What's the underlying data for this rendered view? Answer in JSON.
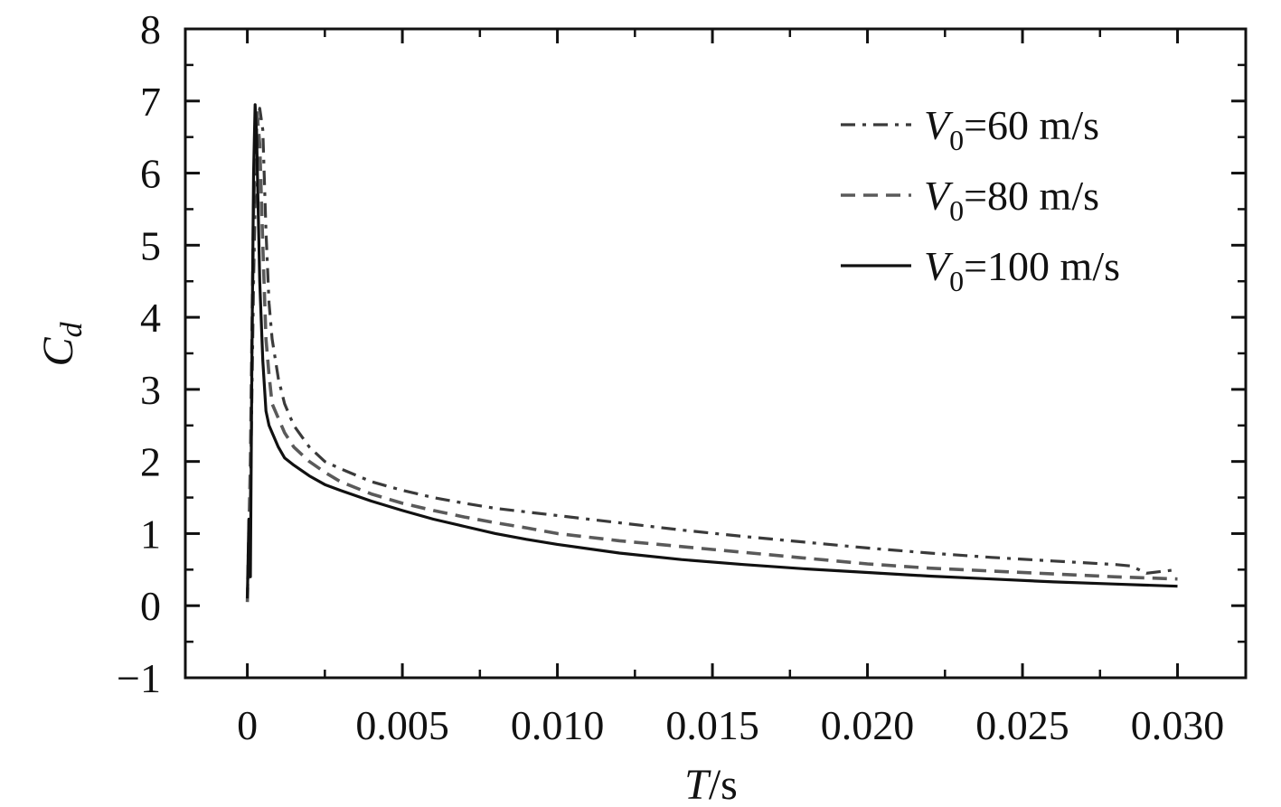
{
  "chart_data": {
    "type": "line",
    "xlabel": {
      "var": "T",
      "unit": "/s"
    },
    "ylabel": {
      "var": "C",
      "sub": "d"
    },
    "xlim": [
      -0.002,
      0.0322
    ],
    "ylim": [
      -1,
      8
    ],
    "xticks": [
      0,
      0.005,
      0.01,
      0.015,
      0.02,
      0.025,
      0.03
    ],
    "xtick_labels": [
      "0",
      "0.005",
      "0.010",
      "0.015",
      "0.020",
      "0.025",
      "0.030"
    ],
    "yticks": [
      -1,
      0,
      1,
      2,
      3,
      4,
      5,
      6,
      7,
      8
    ],
    "ytick_labels": [
      "−1",
      "0",
      "1",
      "2",
      "3",
      "4",
      "5",
      "6",
      "7",
      "8"
    ],
    "legend_position": "top-right",
    "grid": false,
    "series": [
      {
        "name": "V0=60 m/s",
        "legend_label": {
          "var": "V",
          "sub": "0",
          "rest": "=60 m/s"
        },
        "style": "dashdot",
        "color": "#3a3a3a",
        "x": [
          0,
          0.0001,
          0.0002,
          0.0003,
          0.0004,
          0.0005,
          0.0006,
          0.0007,
          0.0008,
          0.001,
          0.0012,
          0.0015,
          0.002,
          0.0025,
          0.003,
          0.004,
          0.005,
          0.006,
          0.007,
          0.008,
          0.009,
          0.01,
          0.012,
          0.014,
          0.016,
          0.018,
          0.02,
          0.022,
          0.024,
          0.026,
          0.028,
          0.0285,
          0.029,
          0.03
        ],
        "y": [
          0.1,
          1.5,
          4.5,
          6.6,
          6.9,
          6.6,
          5.2,
          4.2,
          3.7,
          3.15,
          2.8,
          2.5,
          2.2,
          2.0,
          1.9,
          1.72,
          1.6,
          1.5,
          1.42,
          1.35,
          1.3,
          1.25,
          1.15,
          1.05,
          0.96,
          0.88,
          0.8,
          0.73,
          0.67,
          0.62,
          0.57,
          0.55,
          0.45,
          0.5
        ]
      },
      {
        "name": "V0=80 m/s",
        "legend_label": {
          "var": "V",
          "sub": "0",
          "rest": "=80 m/s"
        },
        "style": "dashed",
        "color": "#5a5a5a",
        "x": [
          0,
          0.0001,
          0.0002,
          0.0003,
          0.0004,
          0.0005,
          0.0006,
          0.0007,
          0.0008,
          0.001,
          0.0012,
          0.0015,
          0.002,
          0.0025,
          0.003,
          0.004,
          0.005,
          0.006,
          0.007,
          0.008,
          0.009,
          0.01,
          0.012,
          0.014,
          0.016,
          0.018,
          0.02,
          0.022,
          0.024,
          0.026,
          0.028,
          0.03
        ],
        "y": [
          0.05,
          2.0,
          5.5,
          6.9,
          6.4,
          5.0,
          3.7,
          3.2,
          2.8,
          2.6,
          2.4,
          2.2,
          2.0,
          1.85,
          1.72,
          1.55,
          1.42,
          1.32,
          1.23,
          1.15,
          1.08,
          1.0,
          0.9,
          0.82,
          0.74,
          0.66,
          0.58,
          0.52,
          0.48,
          0.44,
          0.4,
          0.37
        ]
      },
      {
        "name": "V0=100 m/s",
        "legend_label": {
          "var": "V",
          "sub": "0",
          "rest": "=100 m/s"
        },
        "style": "solid",
        "color": "#111111",
        "x": [
          0,
          5e-05,
          0.0001,
          0.00015,
          0.0002,
          0.00025,
          0.0003,
          0.0004,
          0.0005,
          0.0006,
          0.0007,
          0.0008,
          0.001,
          0.0012,
          0.0015,
          0.002,
          0.0025,
          0.003,
          0.004,
          0.005,
          0.006,
          0.007,
          0.008,
          0.009,
          0.01,
          0.012,
          0.014,
          0.016,
          0.018,
          0.02,
          0.022,
          0.024,
          0.026,
          0.028,
          0.03
        ],
        "y": [
          0.1,
          1.2,
          0.4,
          3.5,
          6.0,
          6.95,
          6.5,
          4.5,
          3.4,
          2.7,
          2.5,
          2.4,
          2.2,
          2.05,
          1.95,
          1.8,
          1.68,
          1.6,
          1.45,
          1.32,
          1.2,
          1.1,
          1.0,
          0.92,
          0.85,
          0.73,
          0.64,
          0.57,
          0.51,
          0.46,
          0.41,
          0.37,
          0.33,
          0.3,
          0.27
        ]
      }
    ]
  }
}
